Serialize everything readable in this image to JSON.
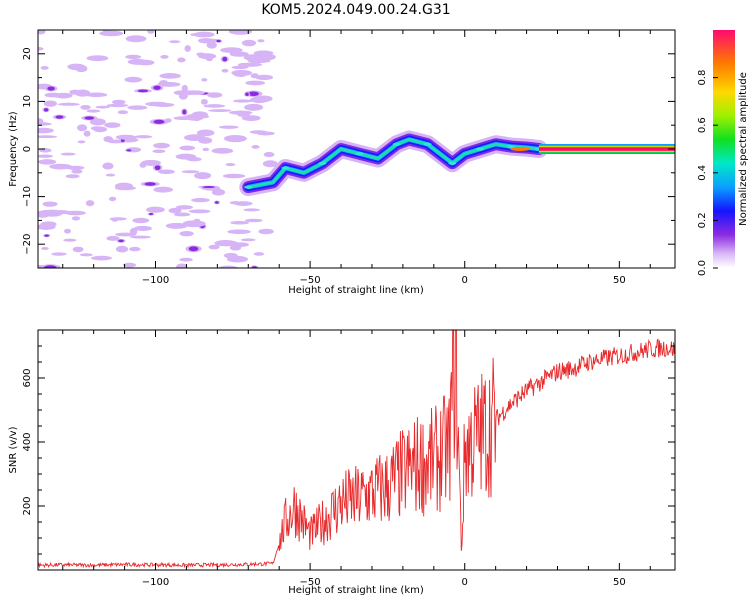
{
  "title": "KOM5.2024.049.00.24.G31",
  "colors": {
    "snr_line": "#e8292b",
    "axis": "#000000",
    "noise": "#d6b4f5"
  },
  "chart_data": [
    {
      "type": "heatmap",
      "xlabel": "Height of straight line (km)",
      "ylabel": "Frequency (Hz)",
      "xlim": [
        -138,
        68
      ],
      "ylim": [
        -25,
        25
      ],
      "x_ticks": [
        -100,
        -50,
        0,
        50
      ],
      "y_ticks": [
        -20,
        -10,
        0,
        10,
        20
      ],
      "colorbar": {
        "label": "Normalized spectral amplitude",
        "range": [
          0,
          1
        ],
        "ticks": [
          "0.0",
          "0.2",
          "0.4",
          "0.6",
          "0.8"
        ],
        "colormap": "rainbow"
      },
      "doppler_trace": {
        "x": [
          -70,
          -62,
          -58,
          -52,
          -46,
          -40,
          -34,
          -28,
          -22,
          -18,
          -12,
          -8,
          -4,
          0,
          5,
          10,
          15,
          20,
          24
        ],
        "y": [
          -8,
          -7,
          -4,
          -5,
          -3,
          0,
          -1,
          -2,
          1,
          2,
          1,
          -1,
          -3,
          -1,
          0,
          1,
          0.5,
          0.3,
          0
        ]
      },
      "carrier_line": {
        "x_start": 24,
        "x_end": 68,
        "frequency": 0,
        "amplitude": 1.0
      }
    },
    {
      "type": "line",
      "xlabel": "Height of straight line (km)",
      "ylabel": "SNR (v/v)",
      "xlim": [
        -138,
        68
      ],
      "ylim": [
        0,
        750
      ],
      "x_ticks": [
        -100,
        -50,
        0,
        50
      ],
      "y_ticks": [
        200,
        400,
        600
      ],
      "series": [
        {
          "x": [
            -138,
            -130,
            -120,
            -110,
            -100,
            -90,
            -80,
            -70,
            -62,
            -58,
            -55,
            -50,
            -45,
            -40,
            -35,
            -30,
            -25,
            -20,
            -15,
            -10,
            -5,
            -3,
            -1,
            0,
            5,
            10,
            15,
            20,
            25,
            30,
            35,
            40,
            45,
            50,
            55,
            60,
            65,
            68
          ],
          "y": [
            15,
            16,
            15,
            17,
            16,
            15,
            16,
            18,
            20,
            150,
            200,
            110,
            160,
            210,
            220,
            240,
            260,
            300,
            330,
            340,
            380,
            700,
            50,
            380,
            420,
            470,
            520,
            560,
            590,
            620,
            630,
            650,
            660,
            670,
            680,
            690,
            695,
            690
          ]
        }
      ]
    }
  ]
}
